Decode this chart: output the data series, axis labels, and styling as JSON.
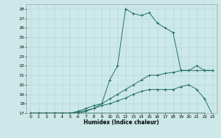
{
  "xlabel": "Humidex (Indice chaleur)",
  "bg_color": "#cce8e8",
  "grid_color": "#b0d4d4",
  "line_color": "#1a6b5a",
  "xlim": [
    -0.5,
    23.5
  ],
  "ylim": [
    17,
    28.5
  ],
  "xticks": [
    0,
    1,
    2,
    3,
    4,
    5,
    6,
    7,
    8,
    9,
    10,
    11,
    12,
    13,
    14,
    15,
    16,
    17,
    18,
    19,
    20,
    21,
    22,
    23
  ],
  "yticks": [
    17,
    18,
    19,
    20,
    21,
    22,
    23,
    24,
    25,
    26,
    27,
    28
  ],
  "series": [
    {
      "x": [
        0,
        1,
        2,
        3,
        4,
        5,
        6,
        7,
        8,
        9,
        10,
        11,
        12,
        13,
        14,
        15,
        16,
        17,
        18,
        19,
        20,
        21,
        22,
        23
      ],
      "y": [
        17,
        17,
        17,
        17,
        17,
        17,
        17,
        17.2,
        17.5,
        18.0,
        20.5,
        22.0,
        28.0,
        27.5,
        27.3,
        27.6,
        26.5,
        26.0,
        25.5,
        21.5,
        21.5,
        22.0,
        21.5,
        21.5
      ],
      "marker": "+"
    },
    {
      "x": [
        0,
        1,
        2,
        3,
        4,
        5,
        6,
        7,
        8,
        9,
        10,
        11,
        12,
        13,
        14,
        15,
        16,
        17,
        18,
        19,
        20,
        21,
        22,
        23
      ],
      "y": [
        17,
        17,
        17,
        17,
        17,
        17,
        17.2,
        17.5,
        17.8,
        18.0,
        18.5,
        19.0,
        19.5,
        20.0,
        20.5,
        21.0,
        21.0,
        21.2,
        21.3,
        21.5,
        21.5,
        21.5,
        21.5,
        21.5
      ],
      "marker": "+"
    },
    {
      "x": [
        0,
        1,
        2,
        3,
        4,
        5,
        6,
        7,
        8,
        9,
        10,
        11,
        12,
        13,
        14,
        15,
        16,
        17,
        18,
        19,
        20,
        21,
        22,
        23
      ],
      "y": [
        17,
        17,
        17,
        17,
        17,
        17,
        17.1,
        17.3,
        17.5,
        17.8,
        18.0,
        18.3,
        18.6,
        19.0,
        19.3,
        19.5,
        19.5,
        19.5,
        19.5,
        19.8,
        20.0,
        19.5,
        18.5,
        16.8
      ],
      "marker": "+"
    },
    {
      "x": [
        0,
        1,
        2,
        3,
        4,
        5,
        6,
        7,
        8,
        9,
        10,
        11,
        12,
        13,
        14,
        15,
        16,
        17,
        18,
        19,
        20,
        21,
        22,
        23
      ],
      "y": [
        17,
        17,
        17,
        17,
        17,
        17,
        17,
        17,
        17,
        17,
        17,
        17,
        17,
        17,
        17,
        17,
        17,
        17,
        17,
        17,
        17,
        17,
        17,
        16.8
      ],
      "marker": null
    }
  ]
}
